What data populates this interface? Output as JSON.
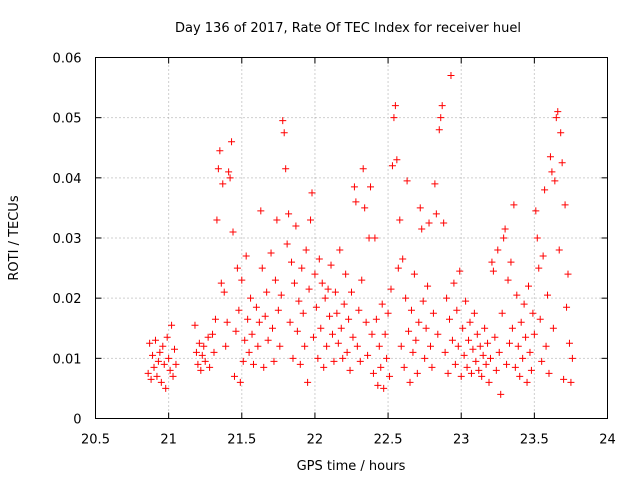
{
  "chart_data": {
    "type": "scatter",
    "title": "Day 136 of 2017, Rate Of TEC Index for receiver huel",
    "xlabel": "GPS time / hours",
    "ylabel": "ROTI / TECUs",
    "xlim": [
      20.5,
      24
    ],
    "ylim": [
      0,
      0.06
    ],
    "x_ticks": [
      "20.5",
      "21",
      "21.5",
      "22",
      "22.5",
      "23",
      "23.5",
      "24"
    ],
    "y_ticks": [
      "0",
      "0.01",
      "0.02",
      "0.03",
      "0.04",
      "0.05",
      "0.06"
    ],
    "grid": true,
    "marker": "+",
    "color": "#ff0000",
    "series": [
      {
        "points": [
          [
            20.86,
            0.0075
          ],
          [
            20.87,
            0.0125
          ],
          [
            20.88,
            0.0065
          ],
          [
            20.89,
            0.0105
          ],
          [
            20.9,
            0.0085
          ],
          [
            20.91,
            0.013
          ],
          [
            20.92,
            0.007
          ],
          [
            20.93,
            0.0095
          ],
          [
            20.94,
            0.011
          ],
          [
            20.95,
            0.006
          ],
          [
            20.96,
            0.012
          ],
          [
            20.97,
            0.009
          ],
          [
            20.98,
            0.005
          ],
          [
            20.99,
            0.0135
          ],
          [
            21.0,
            0.01
          ],
          [
            21.01,
            0.008
          ],
          [
            21.02,
            0.0155
          ],
          [
            21.03,
            0.007
          ],
          [
            21.04,
            0.0115
          ],
          [
            21.05,
            0.009
          ],
          [
            21.18,
            0.0155
          ],
          [
            21.19,
            0.011
          ],
          [
            21.2,
            0.009
          ],
          [
            21.21,
            0.0125
          ],
          [
            21.22,
            0.008
          ],
          [
            21.23,
            0.0105
          ],
          [
            21.24,
            0.012
          ],
          [
            21.25,
            0.0095
          ],
          [
            21.27,
            0.0135
          ],
          [
            21.28,
            0.0085
          ],
          [
            21.3,
            0.014
          ],
          [
            21.31,
            0.011
          ],
          [
            21.32,
            0.0165
          ],
          [
            21.33,
            0.033
          ],
          [
            21.34,
            0.0415
          ],
          [
            21.35,
            0.0445
          ],
          [
            21.36,
            0.0225
          ],
          [
            21.37,
            0.039
          ],
          [
            21.38,
            0.021
          ],
          [
            21.39,
            0.012
          ],
          [
            21.4,
            0.016
          ],
          [
            21.41,
            0.041
          ],
          [
            21.42,
            0.04
          ],
          [
            21.43,
            0.046
          ],
          [
            21.44,
            0.031
          ],
          [
            21.45,
            0.007
          ],
          [
            21.46,
            0.0145
          ],
          [
            21.47,
            0.025
          ],
          [
            21.48,
            0.018
          ],
          [
            21.49,
            0.006
          ],
          [
            21.5,
            0.023
          ],
          [
            21.51,
            0.0095
          ],
          [
            21.52,
            0.013
          ],
          [
            21.53,
            0.027
          ],
          [
            21.54,
            0.0165
          ],
          [
            21.55,
            0.011
          ],
          [
            21.56,
            0.02
          ],
          [
            21.57,
            0.014
          ],
          [
            21.58,
            0.009
          ],
          [
            21.6,
            0.0185
          ],
          [
            21.61,
            0.012
          ],
          [
            21.62,
            0.016
          ],
          [
            21.63,
            0.0345
          ],
          [
            21.64,
            0.025
          ],
          [
            21.65,
            0.0085
          ],
          [
            21.66,
            0.017
          ],
          [
            21.67,
            0.021
          ],
          [
            21.68,
            0.013
          ],
          [
            21.7,
            0.0275
          ],
          [
            21.71,
            0.015
          ],
          [
            21.72,
            0.0095
          ],
          [
            21.73,
            0.023
          ],
          [
            21.74,
            0.033
          ],
          [
            21.75,
            0.018
          ],
          [
            21.76,
            0.012
          ],
          [
            21.77,
            0.0205
          ],
          [
            21.78,
            0.0495
          ],
          [
            21.79,
            0.0475
          ],
          [
            21.8,
            0.0415
          ],
          [
            21.81,
            0.029
          ],
          [
            21.82,
            0.034
          ],
          [
            21.83,
            0.016
          ],
          [
            21.84,
            0.026
          ],
          [
            21.85,
            0.01
          ],
          [
            21.86,
            0.0225
          ],
          [
            21.87,
            0.032
          ],
          [
            21.88,
            0.0145
          ],
          [
            21.89,
            0.0195
          ],
          [
            21.9,
            0.009
          ],
          [
            21.91,
            0.025
          ],
          [
            21.92,
            0.0175
          ],
          [
            21.93,
            0.012
          ],
          [
            21.94,
            0.028
          ],
          [
            21.95,
            0.006
          ],
          [
            21.96,
            0.0215
          ],
          [
            21.97,
            0.033
          ],
          [
            21.98,
            0.0375
          ],
          [
            21.99,
            0.0135
          ],
          [
            22.0,
            0.024
          ],
          [
            22.01,
            0.0185
          ],
          [
            22.02,
            0.01
          ],
          [
            22.03,
            0.0265
          ],
          [
            22.04,
            0.015
          ],
          [
            22.05,
            0.0225
          ],
          [
            22.06,
            0.0085
          ],
          [
            22.07,
            0.02
          ],
          [
            22.08,
            0.012
          ],
          [
            22.09,
            0.0215
          ],
          [
            22.1,
            0.017
          ],
          [
            22.11,
            0.0255
          ],
          [
            22.12,
            0.014
          ],
          [
            22.13,
            0.0095
          ],
          [
            22.14,
            0.021
          ],
          [
            22.15,
            0.0175
          ],
          [
            22.16,
            0.0125
          ],
          [
            22.17,
            0.028
          ],
          [
            22.18,
            0.015
          ],
          [
            22.19,
            0.01
          ],
          [
            22.2,
            0.019
          ],
          [
            22.21,
            0.024
          ],
          [
            22.22,
            0.011
          ],
          [
            22.23,
            0.0165
          ],
          [
            22.24,
            0.008
          ],
          [
            22.25,
            0.021
          ],
          [
            22.26,
            0.0135
          ],
          [
            22.27,
            0.0385
          ],
          [
            22.28,
            0.036
          ],
          [
            22.29,
            0.012
          ],
          [
            22.3,
            0.018
          ],
          [
            22.31,
            0.0095
          ],
          [
            22.32,
            0.023
          ],
          [
            22.33,
            0.0415
          ],
          [
            22.34,
            0.035
          ],
          [
            22.35,
            0.016
          ],
          [
            22.36,
            0.0105
          ],
          [
            22.37,
            0.03
          ],
          [
            22.38,
            0.0385
          ],
          [
            22.39,
            0.014
          ],
          [
            22.4,
            0.0075
          ],
          [
            22.41,
            0.03
          ],
          [
            22.42,
            0.0165
          ],
          [
            22.43,
            0.0055
          ],
          [
            22.44,
            0.012
          ],
          [
            22.45,
            0.0085
          ],
          [
            22.46,
            0.019
          ],
          [
            22.47,
            0.005
          ],
          [
            22.48,
            0.014
          ],
          [
            22.49,
            0.01
          ],
          [
            22.5,
            0.0175
          ],
          [
            22.51,
            0.007
          ],
          [
            22.52,
            0.0215
          ],
          [
            22.53,
            0.042
          ],
          [
            22.54,
            0.05
          ],
          [
            22.55,
            0.052
          ],
          [
            22.56,
            0.043
          ],
          [
            22.57,
            0.025
          ],
          [
            22.58,
            0.033
          ],
          [
            22.59,
            0.012
          ],
          [
            22.6,
            0.0265
          ],
          [
            22.61,
            0.0085
          ],
          [
            22.62,
            0.02
          ],
          [
            22.63,
            0.0395
          ],
          [
            22.64,
            0.0145
          ],
          [
            22.65,
            0.006
          ],
          [
            22.66,
            0.018
          ],
          [
            22.67,
            0.011
          ],
          [
            22.68,
            0.024
          ],
          [
            22.69,
            0.013
          ],
          [
            22.7,
            0.0075
          ],
          [
            22.71,
            0.016
          ],
          [
            22.72,
            0.035
          ],
          [
            22.73,
            0.0315
          ],
          [
            22.74,
            0.0195
          ],
          [
            22.75,
            0.01
          ],
          [
            22.76,
            0.015
          ],
          [
            22.77,
            0.022
          ],
          [
            22.78,
            0.0325
          ],
          [
            22.79,
            0.012
          ],
          [
            22.8,
            0.0085
          ],
          [
            22.81,
            0.0175
          ],
          [
            22.82,
            0.039
          ],
          [
            22.83,
            0.034
          ],
          [
            22.84,
            0.014
          ],
          [
            22.85,
            0.048
          ],
          [
            22.86,
            0.05
          ],
          [
            22.87,
            0.052
          ],
          [
            22.88,
            0.0325
          ],
          [
            22.89,
            0.011
          ],
          [
            22.9,
            0.02
          ],
          [
            22.91,
            0.0075
          ],
          [
            22.92,
            0.0165
          ],
          [
            22.93,
            0.057
          ],
          [
            22.94,
            0.013
          ],
          [
            22.95,
            0.0225
          ],
          [
            22.96,
            0.009
          ],
          [
            22.97,
            0.018
          ],
          [
            22.98,
            0.012
          ],
          [
            22.99,
            0.0245
          ],
          [
            23.0,
            0.007
          ],
          [
            23.01,
            0.015
          ],
          [
            23.02,
            0.0105
          ],
          [
            23.03,
            0.0195
          ],
          [
            23.04,
            0.0085
          ],
          [
            23.05,
            0.013
          ],
          [
            23.06,
            0.016
          ],
          [
            23.07,
            0.0075
          ],
          [
            23.08,
            0.0115
          ],
          [
            23.09,
            0.0175
          ],
          [
            23.1,
            0.0095
          ],
          [
            23.11,
            0.014
          ],
          [
            23.12,
            0.008
          ],
          [
            23.13,
            0.012
          ],
          [
            23.14,
            0.007
          ],
          [
            23.15,
            0.0105
          ],
          [
            23.16,
            0.015
          ],
          [
            23.17,
            0.009
          ],
          [
            23.18,
            0.0125
          ],
          [
            23.19,
            0.006
          ],
          [
            23.2,
            0.01
          ],
          [
            23.21,
            0.026
          ],
          [
            23.22,
            0.0245
          ],
          [
            23.23,
            0.0135
          ],
          [
            23.24,
            0.008
          ],
          [
            23.25,
            0.028
          ],
          [
            23.26,
            0.011
          ],
          [
            23.27,
            0.004
          ],
          [
            23.28,
            0.0175
          ],
          [
            23.29,
            0.03
          ],
          [
            23.3,
            0.0315
          ],
          [
            23.31,
            0.009
          ],
          [
            23.32,
            0.023
          ],
          [
            23.33,
            0.0125
          ],
          [
            23.34,
            0.026
          ],
          [
            23.35,
            0.015
          ],
          [
            23.36,
            0.0355
          ],
          [
            23.37,
            0.0085
          ],
          [
            23.38,
            0.0205
          ],
          [
            23.39,
            0.012
          ],
          [
            23.4,
            0.007
          ],
          [
            23.41,
            0.016
          ],
          [
            23.42,
            0.01
          ],
          [
            23.43,
            0.019
          ],
          [
            23.44,
            0.0135
          ],
          [
            23.45,
            0.006
          ],
          [
            23.46,
            0.022
          ],
          [
            23.47,
            0.011
          ],
          [
            23.48,
            0.008
          ],
          [
            23.49,
            0.0175
          ],
          [
            23.5,
            0.014
          ],
          [
            23.51,
            0.0345
          ],
          [
            23.52,
            0.03
          ],
          [
            23.53,
            0.025
          ],
          [
            23.54,
            0.0165
          ],
          [
            23.55,
            0.0095
          ],
          [
            23.56,
            0.027
          ],
          [
            23.57,
            0.038
          ],
          [
            23.58,
            0.012
          ],
          [
            23.59,
            0.0205
          ],
          [
            23.6,
            0.0075
          ],
          [
            23.61,
            0.0435
          ],
          [
            23.62,
            0.041
          ],
          [
            23.63,
            0.015
          ],
          [
            23.64,
            0.0395
          ],
          [
            23.65,
            0.05
          ],
          [
            23.66,
            0.051
          ],
          [
            23.67,
            0.028
          ],
          [
            23.68,
            0.0475
          ],
          [
            23.69,
            0.0425
          ],
          [
            23.7,
            0.0065
          ],
          [
            23.71,
            0.0355
          ],
          [
            23.72,
            0.0185
          ],
          [
            23.73,
            0.024
          ],
          [
            23.74,
            0.0125
          ],
          [
            23.75,
            0.006
          ],
          [
            23.76,
            0.01
          ]
        ]
      }
    ]
  }
}
